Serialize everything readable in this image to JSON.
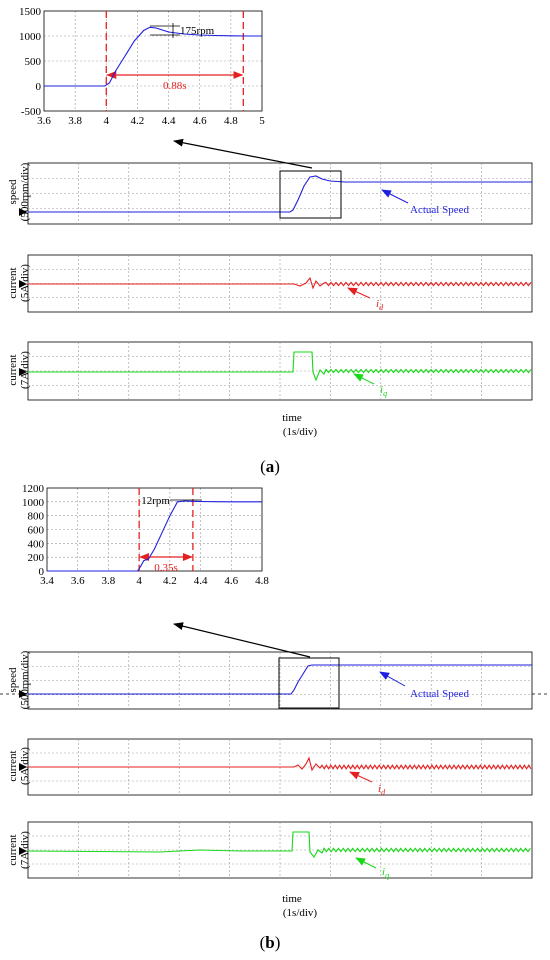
{
  "colors": {
    "speed": "#1f1fe0",
    "id": "#e52020",
    "iq": "#18d818",
    "annotation": "#e52020",
    "axis": "#000000",
    "grid": "#9a9a9a"
  },
  "chart_data": [
    {
      "panel": "a",
      "type": "line",
      "figure_label": "(a)",
      "zoom": {
        "xlim": [
          3.6,
          5.0
        ],
        "ylim": [
          -500,
          1500
        ],
        "xticks": [
          "3.6",
          "3.8",
          "4",
          "4.2",
          "4.4",
          "4.6",
          "4.8",
          "5"
        ],
        "yticks": [
          "-500",
          "0",
          "500",
          "1000",
          "1500"
        ],
        "x": [
          3.6,
          3.99,
          4.02,
          4.06,
          4.12,
          4.18,
          4.24,
          4.28,
          4.32,
          4.36,
          4.4,
          4.5,
          4.6,
          4.7,
          4.8,
          4.9,
          5.0
        ],
        "y": [
          0,
          0,
          60,
          300,
          600,
          900,
          1110,
          1175,
          1160,
          1120,
          1080,
          1040,
          1020,
          1010,
          1005,
          1000,
          1000
        ],
        "overshoot_label": "175rpm",
        "dash_x": [
          4.0,
          4.88
        ],
        "interval_label": "0.88s"
      },
      "traces": [
        {
          "ylabel": "speed (500rpm/div)",
          "legend": "Actual Speed",
          "color": "#1f1fe0"
        },
        {
          "ylabel": "current (5A/div)",
          "legend": "id",
          "color": "#e52020"
        },
        {
          "ylabel": "current (7A/div)",
          "legend": "iq",
          "color": "#18d818"
        }
      ],
      "xlabel": "time (1s/div)"
    },
    {
      "panel": "b",
      "type": "line",
      "figure_label": "(b)",
      "zoom": {
        "xlim": [
          3.4,
          4.8
        ],
        "ylim": [
          0,
          1200
        ],
        "xticks": [
          "3.4",
          "3.6",
          "3.8",
          "4",
          "4.2",
          "4.4",
          "4.6",
          "4.8"
        ],
        "yticks": [
          "0",
          "200",
          "400",
          "600",
          "800",
          "1000",
          "1200"
        ],
        "x": [
          3.4,
          3.99,
          4.01,
          4.03,
          4.06,
          4.1,
          4.15,
          4.2,
          4.25,
          4.3,
          4.35,
          4.4,
          4.5,
          4.6,
          4.7,
          4.8
        ],
        "y": [
          0,
          0,
          70,
          150,
          170,
          320,
          560,
          800,
          1000,
          1012,
          1008,
          1005,
          1002,
          1000,
          1000,
          1000
        ],
        "overshoot_label": "12rpm",
        "dash_x": [
          4.0,
          4.35
        ],
        "interval_label": "0.35s"
      },
      "traces": [
        {
          "ylabel": "speed (500rpm/div)",
          "legend": "Actual Speed",
          "color": "#1f1fe0"
        },
        {
          "ylabel": "current (5A/div)",
          "legend": "id",
          "color": "#e52020"
        },
        {
          "ylabel": "current (7A/div)",
          "legend": "iq",
          "color": "#18d818"
        }
      ],
      "xlabel": "time (1s/div)"
    }
  ],
  "text": {
    "a": {
      "speed_label_1": "speed",
      "speed_label_2": "(500rpm/div)",
      "id_label_1": "current",
      "id_label_2": "(5A/div)",
      "iq_label_1": "current",
      "iq_label_2": "(7A/div)",
      "legend_speed": "Actual Speed",
      "legend_id_main": "i",
      "legend_id_sub": "d",
      "legend_iq_main": "i",
      "legend_iq_sub": "q",
      "time_1": "time",
      "time_2": "(1s/div)",
      "fig_open": "(",
      "fig_letter": "a",
      "fig_close": ")"
    },
    "b": {
      "speed_label_1": "speed",
      "speed_label_2": "(500rpm/div)",
      "id_label_1": "current",
      "id_label_2": "(5A/div)",
      "iq_label_1": "current",
      "iq_label_2": "(7A/div)",
      "legend_speed": "Actual Speed",
      "legend_id_main": "i",
      "legend_id_sub": "d",
      "legend_iq_main": "i",
      "legend_iq_sub": "q",
      "time_1": "time",
      "time_2": "(1s/div)",
      "fig_open": "(",
      "fig_letter": "b",
      "fig_close": ")"
    }
  }
}
